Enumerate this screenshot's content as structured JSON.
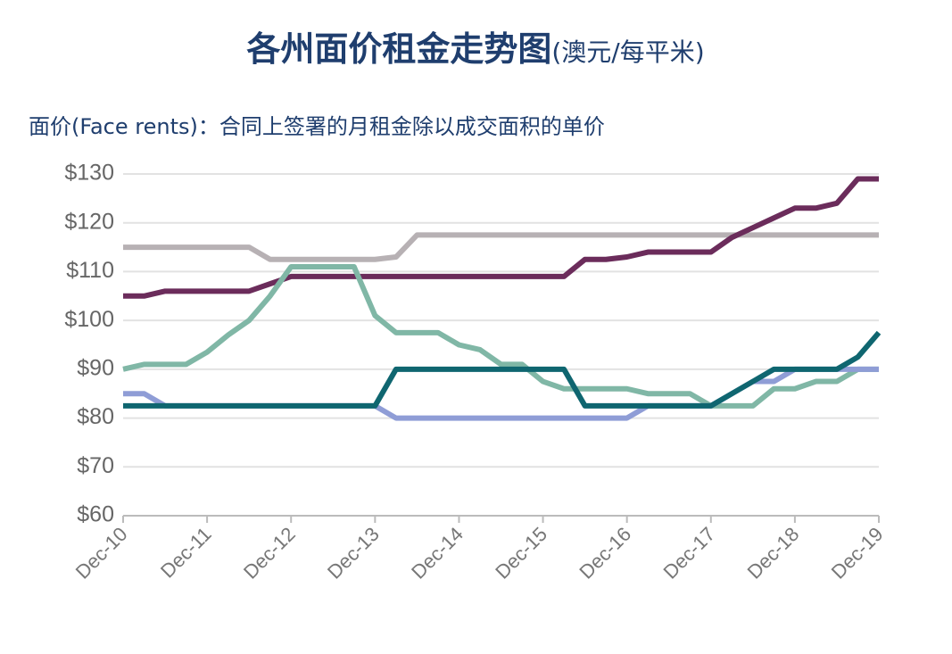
{
  "chart_data": {
    "type": "line",
    "title": "各州面价租金走势图",
    "title_unit": "(澳元/每平米)",
    "subtitle": "面价(Face rents)：合同上签署的月租金除以成交面积的单价",
    "categories": [
      "Dec-10",
      null,
      null,
      null,
      "Dec-11",
      null,
      null,
      null,
      "Dec-12",
      null,
      null,
      null,
      "Dec-13",
      null,
      null,
      null,
      "Dec-14",
      null,
      null,
      null,
      "Dec-15",
      null,
      null,
      null,
      "Dec-16",
      null,
      null,
      null,
      "Dec-17",
      null,
      null,
      null,
      "Dec-18",
      null,
      null,
      null,
      "Dec-19"
    ],
    "series": [
      {
        "color": "#b7b1b4",
        "values": [
          115,
          115,
          115,
          115,
          115,
          115,
          115,
          112.5,
          112.5,
          112.5,
          112.5,
          112.5,
          112.5,
          113,
          117.5,
          117.5,
          117.5,
          117.5,
          117.5,
          117.5,
          117.5,
          117.5,
          117.5,
          117.5,
          117.5,
          117.5,
          117.5,
          117.5,
          117.5,
          117.5,
          117.5,
          117.5,
          117.5,
          117.5,
          117.5,
          117.5,
          117.5
        ]
      },
      {
        "color": "#6b2c5b",
        "values": [
          105,
          105,
          106,
          106,
          106,
          106,
          106,
          107.5,
          109,
          109,
          109,
          109,
          109,
          109,
          109,
          109,
          109,
          109,
          109,
          109,
          109,
          109,
          112.5,
          112.5,
          113,
          114,
          114,
          114,
          114,
          117,
          119,
          121,
          123,
          123,
          124,
          129,
          129
        ]
      },
      {
        "color": "#80b7a6",
        "values": [
          90,
          91,
          91,
          91,
          93.5,
          97,
          100,
          105,
          111,
          111,
          111,
          111,
          101,
          97.5,
          97.5,
          97.5,
          95,
          94,
          91,
          91,
          87.5,
          86,
          86,
          86,
          86,
          85,
          85,
          85,
          82.5,
          82.5,
          82.5,
          86,
          86,
          87.5,
          87.5,
          90,
          90
        ]
      },
      {
        "color": "#8f9dd6",
        "values": [
          85,
          85,
          82.5,
          82.5,
          82.5,
          82.5,
          82.5,
          82.5,
          82.5,
          82.5,
          82.5,
          82.5,
          82.5,
          80,
          80,
          80,
          80,
          80,
          80,
          80,
          80,
          80,
          80,
          80,
          80,
          82.5,
          82.5,
          82.5,
          82.5,
          85,
          87.5,
          87.5,
          90,
          90,
          90,
          90,
          90
        ]
      },
      {
        "color": "#0f6670",
        "values": [
          82.5,
          82.5,
          82.5,
          82.5,
          82.5,
          82.5,
          82.5,
          82.5,
          82.5,
          82.5,
          82.5,
          82.5,
          82.5,
          90,
          90,
          90,
          90,
          90,
          90,
          90,
          90,
          90,
          82.5,
          82.5,
          82.5,
          82.5,
          82.5,
          82.5,
          82.5,
          85,
          87.5,
          90,
          90,
          90,
          90,
          92.5,
          97.5
        ]
      }
    ],
    "ylim": [
      60,
      130
    ],
    "yticks": [
      {
        "value": 60,
        "label": "$60"
      },
      {
        "value": 70,
        "label": "$70"
      },
      {
        "value": 80,
        "label": "$80"
      },
      {
        "value": 90,
        "label": "$90"
      },
      {
        "value": 100,
        "label": "$100"
      },
      {
        "value": 110,
        "label": "$110"
      },
      {
        "value": 120,
        "label": "$120"
      },
      {
        "value": 130,
        "label": "$130"
      }
    ],
    "grid": true
  }
}
